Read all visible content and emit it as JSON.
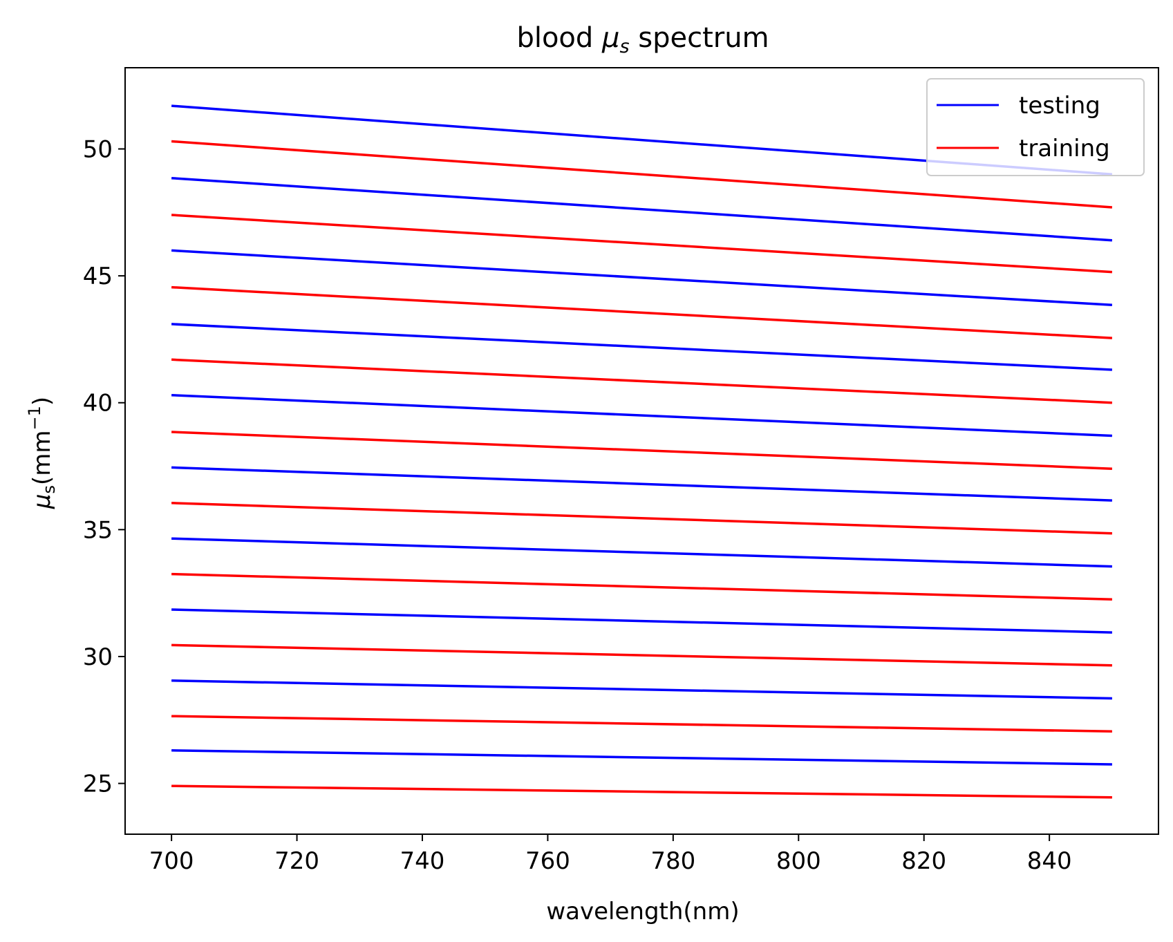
{
  "chart_data": {
    "type": "line",
    "title_main": "blood ",
    "title_symbol": "μ",
    "title_symbol_sub": "s",
    "title_suffix": " spectrum",
    "xlabel": "wavelength(nm)",
    "ylabel_symbol": "μ",
    "ylabel_sub": "s",
    "ylabel_unit": "(mm",
    "ylabel_sup": "−1",
    "ylabel_close": ")",
    "xlim": [
      692.6,
      857.4
    ],
    "ylim": [
      23.0,
      53.2
    ],
    "xticks": [
      {
        "value": 700,
        "label": "700"
      },
      {
        "value": 720,
        "label": "720"
      },
      {
        "value": 740,
        "label": "740"
      },
      {
        "value": 760,
        "label": "760"
      },
      {
        "value": 780,
        "label": "780"
      },
      {
        "value": 800,
        "label": "800"
      },
      {
        "value": 820,
        "label": "820"
      },
      {
        "value": 840,
        "label": "840"
      }
    ],
    "yticks": [
      {
        "value": 25,
        "label": "25"
      },
      {
        "value": 30,
        "label": "30"
      },
      {
        "value": 35,
        "label": "35"
      },
      {
        "value": 40,
        "label": "40"
      },
      {
        "value": 45,
        "label": "45"
      },
      {
        "value": 50,
        "label": "50"
      }
    ],
    "grid": false,
    "legend_position": "top-right",
    "legend": [
      {
        "label": "testing",
        "color": "#0000ff"
      },
      {
        "label": "training",
        "color": "#ff0000"
      }
    ],
    "series": [
      {
        "group": "testing",
        "color": "#0000ff",
        "x": [
          700,
          850
        ],
        "y": [
          51.7,
          49.0
        ]
      },
      {
        "group": "training",
        "color": "#ff0000",
        "x": [
          700,
          850
        ],
        "y": [
          50.3,
          47.7
        ]
      },
      {
        "group": "testing",
        "color": "#0000ff",
        "x": [
          700,
          850
        ],
        "y": [
          48.85,
          46.4
        ]
      },
      {
        "group": "training",
        "color": "#ff0000",
        "x": [
          700,
          850
        ],
        "y": [
          47.4,
          45.15
        ]
      },
      {
        "group": "testing",
        "color": "#0000ff",
        "x": [
          700,
          850
        ],
        "y": [
          46.0,
          43.85
        ]
      },
      {
        "group": "training",
        "color": "#ff0000",
        "x": [
          700,
          850
        ],
        "y": [
          44.55,
          42.55
        ]
      },
      {
        "group": "testing",
        "color": "#0000ff",
        "x": [
          700,
          850
        ],
        "y": [
          43.1,
          41.3
        ]
      },
      {
        "group": "training",
        "color": "#ff0000",
        "x": [
          700,
          850
        ],
        "y": [
          41.7,
          40.0
        ]
      },
      {
        "group": "testing",
        "color": "#0000ff",
        "x": [
          700,
          850
        ],
        "y": [
          40.3,
          38.7
        ]
      },
      {
        "group": "training",
        "color": "#ff0000",
        "x": [
          700,
          850
        ],
        "y": [
          38.85,
          37.4
        ]
      },
      {
        "group": "testing",
        "color": "#0000ff",
        "x": [
          700,
          850
        ],
        "y": [
          37.45,
          36.15
        ]
      },
      {
        "group": "training",
        "color": "#ff0000",
        "x": [
          700,
          850
        ],
        "y": [
          36.05,
          34.85
        ]
      },
      {
        "group": "testing",
        "color": "#0000ff",
        "x": [
          700,
          850
        ],
        "y": [
          34.65,
          33.55
        ]
      },
      {
        "group": "training",
        "color": "#ff0000",
        "x": [
          700,
          850
        ],
        "y": [
          33.25,
          32.25
        ]
      },
      {
        "group": "testing",
        "color": "#0000ff",
        "x": [
          700,
          850
        ],
        "y": [
          31.85,
          30.95
        ]
      },
      {
        "group": "training",
        "color": "#ff0000",
        "x": [
          700,
          850
        ],
        "y": [
          30.45,
          29.65
        ]
      },
      {
        "group": "testing",
        "color": "#0000ff",
        "x": [
          700,
          850
        ],
        "y": [
          29.05,
          28.35
        ]
      },
      {
        "group": "training",
        "color": "#ff0000",
        "x": [
          700,
          850
        ],
        "y": [
          27.65,
          27.05
        ]
      },
      {
        "group": "testing",
        "color": "#0000ff",
        "x": [
          700,
          850
        ],
        "y": [
          26.3,
          25.75
        ]
      },
      {
        "group": "training",
        "color": "#ff0000",
        "x": [
          700,
          850
        ],
        "y": [
          24.9,
          24.45
        ]
      }
    ]
  }
}
